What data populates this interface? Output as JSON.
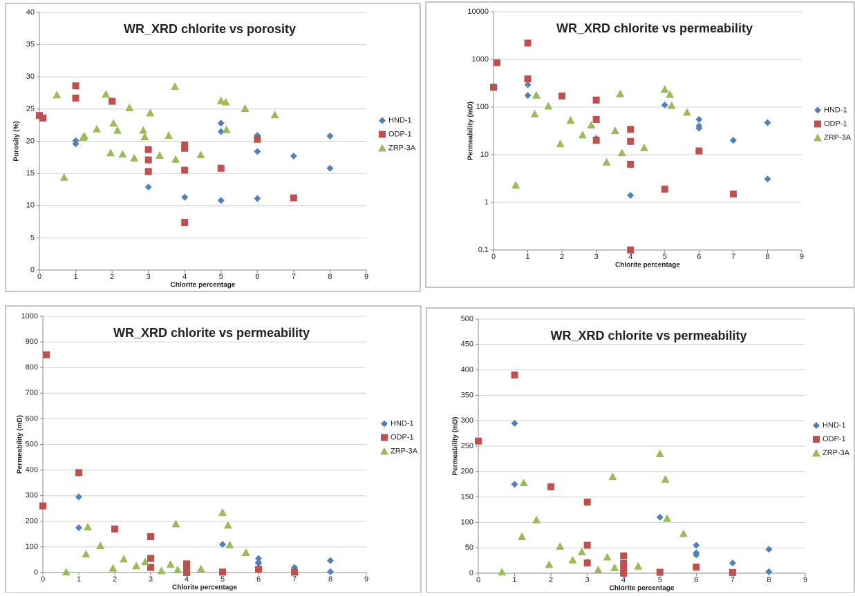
{
  "chart_data": [
    {
      "type": "scatter",
      "title": "WR_XRD chlorite vs porosity",
      "xlabel": "Chlorite percentage",
      "ylabel": "Porosity (%)",
      "xlim": [
        0,
        9
      ],
      "xticks": [
        0,
        1,
        2,
        3,
        4,
        5,
        6,
        7,
        8,
        9
      ],
      "ylim": [
        0,
        40
      ],
      "yticks": [
        0,
        5,
        10,
        15,
        20,
        25,
        30,
        35,
        40
      ],
      "yscale": "linear",
      "grid": true,
      "legend": "right",
      "series": [
        {
          "name": "HND-1",
          "color": "#4f81bd",
          "marker": "diamond",
          "x": [
            1,
            1,
            3,
            4,
            5,
            5,
            5,
            6,
            6,
            6,
            7,
            8,
            8
          ],
          "values": [
            20.1,
            19.6,
            12.9,
            11.3,
            22.8,
            21.5,
            10.8,
            20.9,
            18.4,
            11.1,
            17.7,
            20.8,
            15.8
          ]
        },
        {
          "name": "ODP-1",
          "color": "#c0504d",
          "marker": "square",
          "x": [
            0,
            0.1,
            1,
            1,
            2,
            3,
            3,
            3,
            4,
            4,
            4,
            4,
            5,
            6,
            7
          ],
          "values": [
            24.0,
            23.6,
            28.6,
            26.7,
            26.2,
            18.7,
            17.1,
            15.3,
            19.4,
            18.9,
            15.5,
            7.4,
            15.8,
            20.3,
            11.2
          ]
        },
        {
          "name": "ZRP-3A",
          "color": "#9bbb59",
          "marker": "triangle",
          "x": [
            0.48,
            0.68,
            1.2,
            1.24,
            1.58,
            1.83,
            1.96,
            2.04,
            2.15,
            2.29,
            2.48,
            2.61,
            2.86,
            2.9,
            3.05,
            3.31,
            3.56,
            3.73,
            3.75,
            4.44,
            5.0,
            5.13,
            5.15,
            5.66,
            6.48
          ],
          "values": [
            27.2,
            14.4,
            20.6,
            20.8,
            21.9,
            27.3,
            18.2,
            22.8,
            21.7,
            18.0,
            25.2,
            17.4,
            21.7,
            20.7,
            24.4,
            17.8,
            20.9,
            28.5,
            17.2,
            17.9,
            26.3,
            26.1,
            21.8,
            25.1,
            24.1
          ]
        }
      ]
    },
    {
      "type": "scatter",
      "title": "WR_XRD chlorite vs permeability",
      "xlabel": "Chlorite percentage",
      "ylabel": "Permeability (mD)",
      "xlim": [
        0,
        9
      ],
      "xticks": [
        0,
        1,
        2,
        3,
        4,
        5,
        6,
        7,
        8,
        9
      ],
      "ylim": [
        0.1,
        10000
      ],
      "yticks": [
        0.1,
        1,
        10,
        100,
        1000,
        10000
      ],
      "yscale": "log",
      "grid": true,
      "legend": "right",
      "series": [
        {
          "name": "HND-1",
          "color": "#4f81bd",
          "marker": "diamond",
          "x": [
            1,
            1,
            3,
            4,
            5,
            6,
            6,
            6,
            7,
            8,
            8
          ],
          "values": [
            295,
            175,
            22,
            1.4,
            110,
            55,
            40,
            36,
            20,
            47,
            3.1
          ]
        },
        {
          "name": "ODP-1",
          "color": "#c0504d",
          "marker": "square",
          "x": [
            0,
            0.1,
            1,
            1,
            2,
            3,
            3,
            3,
            4,
            4,
            4,
            4,
            5,
            6,
            7
          ],
          "values": [
            260,
            850,
            2200,
            390,
            170,
            140,
            55,
            20,
            34,
            19,
            6.3,
            0.1,
            1.9,
            12,
            1.5
          ]
        },
        {
          "name": "ZRP-3A",
          "color": "#9bbb59",
          "marker": "triangle",
          "x": [
            0.65,
            1.2,
            1.25,
            1.6,
            1.95,
            2.25,
            2.6,
            2.85,
            3.3,
            3.55,
            3.7,
            3.75,
            4.4,
            5.0,
            5.15,
            5.2,
            5.65
          ],
          "values": [
            2.3,
            72,
            178,
            105,
            17,
            53,
            26,
            42,
            7,
            32,
            190,
            11,
            14,
            235,
            185,
            108,
            78
          ]
        }
      ]
    },
    {
      "type": "scatter",
      "title": "WR_XRD chlorite vs permeability",
      "xlabel": "Chlorite percentage",
      "ylabel": "Permeability (mD)",
      "xlim": [
        0,
        9
      ],
      "xticks": [
        0,
        1,
        2,
        3,
        4,
        5,
        6,
        7,
        8,
        9
      ],
      "ylim": [
        0,
        1000
      ],
      "yticks": [
        0,
        100,
        200,
        300,
        400,
        500,
        600,
        700,
        800,
        900,
        1000
      ],
      "yscale": "linear",
      "grid": true,
      "legend": "right",
      "series": [
        {
          "name": "HND-1",
          "color": "#4f81bd",
          "marker": "diamond",
          "x": [
            1,
            1,
            3,
            4,
            5,
            6,
            6,
            6,
            7,
            8,
            8
          ],
          "values": [
            295,
            175,
            22,
            1.4,
            110,
            55,
            40,
            36,
            20,
            47,
            3.1
          ]
        },
        {
          "name": "ODP-1",
          "color": "#c0504d",
          "marker": "square",
          "x": [
            0,
            0.1,
            1,
            2,
            3,
            3,
            3,
            4,
            4,
            4,
            4,
            5,
            6,
            7
          ],
          "values": [
            260,
            850,
            390,
            170,
            140,
            55,
            20,
            34,
            19,
            6.3,
            0.1,
            1.9,
            12,
            1.5
          ]
        },
        {
          "name": "ZRP-3A",
          "color": "#9bbb59",
          "marker": "triangle",
          "x": [
            0.65,
            1.2,
            1.25,
            1.6,
            1.95,
            2.25,
            2.6,
            2.85,
            3.3,
            3.55,
            3.7,
            3.75,
            4.4,
            5.0,
            5.15,
            5.2,
            5.65
          ],
          "values": [
            2.3,
            72,
            178,
            105,
            17,
            53,
            26,
            42,
            7,
            32,
            190,
            11,
            14,
            235,
            185,
            108,
            78
          ]
        }
      ]
    },
    {
      "type": "scatter",
      "title": "WR_XRD chlorite vs permeability",
      "xlabel": "Chlorite percentage",
      "ylabel": "Permeability (mD)",
      "xlim": [
        0,
        9
      ],
      "xticks": [
        0,
        1,
        2,
        3,
        4,
        5,
        6,
        7,
        8,
        9
      ],
      "ylim": [
        0,
        500
      ],
      "yticks": [
        0,
        50,
        100,
        150,
        200,
        250,
        300,
        350,
        400,
        450,
        500
      ],
      "yscale": "linear",
      "grid": true,
      "legend": "right",
      "series": [
        {
          "name": "HND-1",
          "color": "#4f81bd",
          "marker": "diamond",
          "x": [
            1,
            1,
            3,
            4,
            5,
            6,
            6,
            6,
            7,
            8,
            8
          ],
          "values": [
            295,
            175,
            22,
            1.4,
            110,
            55,
            40,
            36,
            20,
            47,
            3.1
          ]
        },
        {
          "name": "ODP-1",
          "color": "#c0504d",
          "marker": "square",
          "x": [
            0,
            1,
            2,
            3,
            3,
            3,
            4,
            4,
            4,
            4,
            5,
            6,
            7
          ],
          "values": [
            260,
            390,
            170,
            140,
            55,
            20,
            34,
            19,
            6.3,
            0.1,
            1.9,
            12,
            1.5
          ]
        },
        {
          "name": "ZRP-3A",
          "color": "#9bbb59",
          "marker": "triangle",
          "x": [
            0.65,
            1.2,
            1.25,
            1.6,
            1.95,
            2.25,
            2.6,
            2.85,
            3.3,
            3.55,
            3.7,
            3.75,
            4.4,
            5.0,
            5.15,
            5.2,
            5.65
          ],
          "values": [
            2.3,
            72,
            178,
            105,
            17,
            53,
            26,
            42,
            7,
            32,
            190,
            11,
            14,
            235,
            185,
            108,
            78
          ]
        }
      ]
    }
  ]
}
